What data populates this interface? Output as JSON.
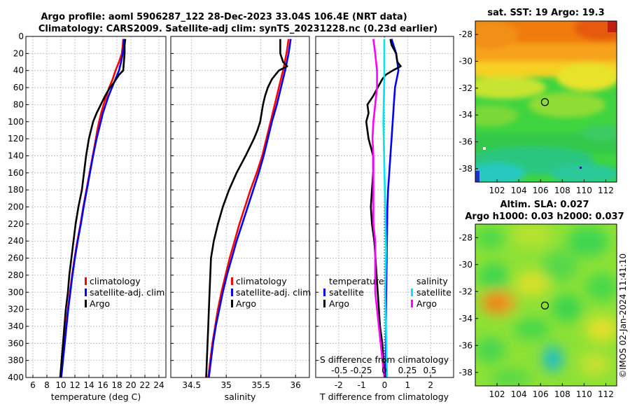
{
  "header": {
    "title_line1": "Argo profile: aoml 5906287_122 28-Dec-2023 33.04S 106.4E (NRT data)",
    "title_line2": "Climatology: CARS2009. Satellite-adj clim: synTS_20231228.nc (0.23d earlier)"
  },
  "colors": {
    "climatology": "#ff0000",
    "satellite": "#0000ff",
    "argo": "#000000",
    "salinity_sat": "#00e5ee",
    "salinity_argo": "#ff00ff"
  },
  "chart_data": [
    {
      "type": "line",
      "id": "temperature",
      "xlabel": "temperature (deg C)",
      "ylabel": "",
      "xlim": [
        5,
        25
      ],
      "ylim": [
        400,
        0
      ],
      "xticks": [
        6,
        8,
        10,
        12,
        14,
        16,
        18,
        20,
        22,
        24
      ],
      "yticks": [
        0,
        20,
        40,
        60,
        80,
        100,
        120,
        140,
        160,
        180,
        200,
        220,
        240,
        260,
        280,
        300,
        320,
        340,
        360,
        380,
        400
      ],
      "legend": [
        "climatology",
        "satellite-adj. clim",
        "Argo"
      ],
      "series": [
        {
          "name": "climatology",
          "color": "#ff0000",
          "depth": [
            3,
            10,
            20,
            30,
            40,
            50,
            60,
            70,
            80,
            90,
            100,
            110,
            120,
            140,
            160,
            180,
            200,
            220,
            240,
            260,
            280,
            300,
            320,
            340,
            360,
            380,
            400
          ],
          "values": [
            18.9,
            18.85,
            18.7,
            18.3,
            17.8,
            17.4,
            16.9,
            16.5,
            16.1,
            15.75,
            15.45,
            15.2,
            15.0,
            14.55,
            14.1,
            13.65,
            13.2,
            12.8,
            12.35,
            11.95,
            11.6,
            11.3,
            11.0,
            10.75,
            10.5,
            10.25,
            10.0
          ]
        },
        {
          "name": "satellite-adj. clim",
          "color": "#0000ff",
          "depth": [
            3,
            10,
            20,
            30,
            40,
            50,
            60,
            70,
            80,
            90,
            100,
            110,
            120,
            140,
            160,
            180,
            200,
            220,
            240,
            260,
            280,
            300,
            320,
            340,
            360,
            380,
            400
          ],
          "values": [
            19.0,
            18.95,
            18.85,
            18.6,
            18.3,
            17.8,
            17.3,
            16.8,
            16.4,
            16.0,
            15.7,
            15.4,
            15.1,
            14.6,
            14.15,
            13.7,
            13.25,
            12.85,
            12.4,
            12.0,
            11.65,
            11.35,
            11.05,
            10.8,
            10.55,
            10.3,
            10.05
          ]
        },
        {
          "name": "Argo",
          "color": "#000000",
          "depth": [
            3,
            10,
            20,
            30,
            40,
            45,
            50,
            55,
            60,
            70,
            80,
            90,
            100,
            110,
            120,
            140,
            160,
            180,
            200,
            220,
            240,
            260,
            280,
            300,
            320,
            340,
            360,
            380,
            400
          ],
          "values": [
            19.2,
            19.1,
            19.1,
            19.0,
            18.9,
            18.3,
            17.9,
            17.5,
            17.0,
            16.3,
            15.7,
            15.1,
            14.6,
            14.3,
            14.0,
            13.6,
            13.3,
            13.0,
            12.5,
            12.1,
            11.8,
            11.5,
            11.2,
            11.0,
            10.7,
            10.5,
            10.3,
            10.1,
            9.9
          ]
        }
      ]
    },
    {
      "type": "line",
      "id": "salinity",
      "xlabel": "salinity",
      "ylabel": "",
      "xlim": [
        34.2,
        36.2
      ],
      "ylim": [
        400,
        0
      ],
      "xticks": [
        34.5,
        35,
        35.5,
        36
      ],
      "xticklabels": [
        "34.5",
        "35",
        "35.5",
        "36"
      ],
      "legend": [
        "climatology",
        "satellite-adj. clim",
        "Argo"
      ],
      "series": [
        {
          "name": "climatology",
          "color": "#ff0000",
          "depth": [
            3,
            20,
            40,
            60,
            80,
            100,
            120,
            140,
            160,
            180,
            200,
            220,
            240,
            260,
            280,
            300,
            320,
            340,
            360,
            380,
            400
          ],
          "values": [
            35.9,
            35.87,
            35.82,
            35.76,
            35.7,
            35.64,
            35.58,
            35.52,
            35.44,
            35.35,
            35.27,
            35.19,
            35.12,
            35.05,
            34.99,
            34.93,
            34.88,
            34.84,
            34.8,
            34.77,
            34.74
          ]
        },
        {
          "name": "satellite-adj. clim",
          "color": "#0000ff",
          "depth": [
            3,
            20,
            40,
            60,
            80,
            100,
            120,
            140,
            160,
            180,
            200,
            220,
            240,
            260,
            280,
            300,
            320,
            340,
            360,
            380,
            400
          ],
          "values": [
            35.93,
            35.9,
            35.85,
            35.79,
            35.73,
            35.66,
            35.6,
            35.54,
            35.47,
            35.39,
            35.31,
            35.23,
            35.15,
            35.08,
            35.01,
            34.95,
            34.9,
            34.85,
            34.81,
            34.78,
            34.75
          ]
        },
        {
          "name": "Argo",
          "color": "#000000",
          "depth": [
            3,
            20,
            30,
            35,
            40,
            50,
            60,
            70,
            80,
            90,
            100,
            110,
            120,
            140,
            160,
            180,
            200,
            220,
            240,
            260,
            280,
            300,
            320,
            340,
            360,
            380,
            400
          ],
          "values": [
            35.78,
            35.78,
            35.82,
            35.88,
            35.76,
            35.66,
            35.6,
            35.56,
            35.53,
            35.51,
            35.49,
            35.45,
            35.4,
            35.28,
            35.15,
            35.04,
            34.95,
            34.88,
            34.82,
            34.78,
            34.77,
            34.76,
            34.75,
            34.74,
            34.73,
            34.72,
            34.71
          ]
        }
      ]
    },
    {
      "type": "line",
      "id": "difference",
      "xlabel": "T difference from climatology",
      "xlabel_top": "S difference from climatology",
      "xlim": [
        -3,
        3
      ],
      "ylim": [
        400,
        0
      ],
      "xticks": [
        -2,
        -1,
        0,
        1,
        2
      ],
      "top_ticks": [
        "-0.5",
        "-0.25",
        "0",
        "0.25",
        "0.5"
      ],
      "legend_temperature": {
        "heading": "temperature",
        "items": [
          "satellite",
          "Argo"
        ]
      },
      "legend_salinity": {
        "heading": "salinity",
        "items": [
          "satellite",
          "Argo"
        ]
      },
      "series": [
        {
          "name": "T satellite",
          "color": "#0000ff",
          "depth": [
            3,
            20,
            30,
            40,
            60,
            80,
            100,
            120,
            140,
            160,
            180,
            200,
            240,
            280,
            320,
            360,
            400
          ],
          "values": [
            0.3,
            0.5,
            0.55,
            0.6,
            0.45,
            0.4,
            0.35,
            0.3,
            0.25,
            0.2,
            0.15,
            0.12,
            0.1,
            0.08,
            0.06,
            0.05,
            0.05
          ]
        },
        {
          "name": "T Argo",
          "color": "#000000",
          "depth": [
            3,
            10,
            20,
            30,
            35,
            40,
            45,
            50,
            60,
            70,
            80,
            90,
            100,
            120,
            140,
            160,
            180,
            200,
            220,
            240,
            260,
            280,
            300,
            320,
            340,
            360,
            380,
            400
          ],
          "values": [
            0.25,
            0.3,
            0.5,
            0.55,
            0.7,
            0.35,
            0.05,
            -0.1,
            -0.3,
            -0.5,
            -0.75,
            -0.7,
            -0.8,
            -0.7,
            -0.5,
            -0.5,
            -0.55,
            -0.6,
            -0.55,
            -0.45,
            -0.4,
            -0.35,
            -0.3,
            -0.25,
            -0.2,
            -0.1,
            -0.05,
            0.0
          ]
        },
        {
          "name": "S satellite",
          "color": "#00e5ee",
          "depth": [
            3,
            50,
            100,
            150,
            200,
            250,
            300,
            350,
            400
          ],
          "values": [
            0.0,
            0.0,
            -0.01,
            0.0,
            0.01,
            0.02,
            0.01,
            0.02,
            0.03
          ]
        },
        {
          "name": "S Argo",
          "color": "#ff00ff",
          "depth": [
            3,
            20,
            40,
            60,
            80,
            100,
            120,
            140,
            160,
            180,
            200,
            220,
            240,
            260,
            280,
            300,
            320,
            340,
            360,
            380,
            400
          ],
          "values": [
            -0.12,
            -0.1,
            -0.08,
            -0.08,
            -0.1,
            -0.12,
            -0.13,
            -0.12,
            -0.12,
            -0.12,
            -0.12,
            -0.12,
            -0.1,
            -0.1,
            -0.1,
            -0.1,
            -0.08,
            -0.06,
            -0.04,
            -0.02,
            0.0
          ]
        }
      ]
    },
    {
      "type": "heatmap",
      "id": "sst_map",
      "title": "sat. SST: 19 Argo: 19.3",
      "xlim": [
        100,
        113
      ],
      "ylim": [
        -39,
        -27
      ],
      "xticks": [
        102,
        104,
        106,
        108,
        110,
        112
      ],
      "yticks": [
        -28,
        -30,
        -32,
        -34,
        -36,
        -38
      ],
      "marker": {
        "lon": 106.4,
        "lat": -33.04
      }
    },
    {
      "type": "heatmap",
      "id": "sla_map",
      "title_line1": "Altim. SLA: 0.027",
      "title_line2": "Argo h1000: 0.03 h2000: 0.037",
      "xlim": [
        100,
        113
      ],
      "ylim": [
        -39,
        -27
      ],
      "xticks": [
        102,
        104,
        106,
        108,
        110,
        112
      ],
      "yticks": [
        -28,
        -30,
        -32,
        -34,
        -36,
        -38
      ],
      "marker": {
        "lon": 106.4,
        "lat": -33.04
      }
    }
  ],
  "footer": {
    "watermark": "©IMOS 02-Jan-2024 11:41:10"
  }
}
